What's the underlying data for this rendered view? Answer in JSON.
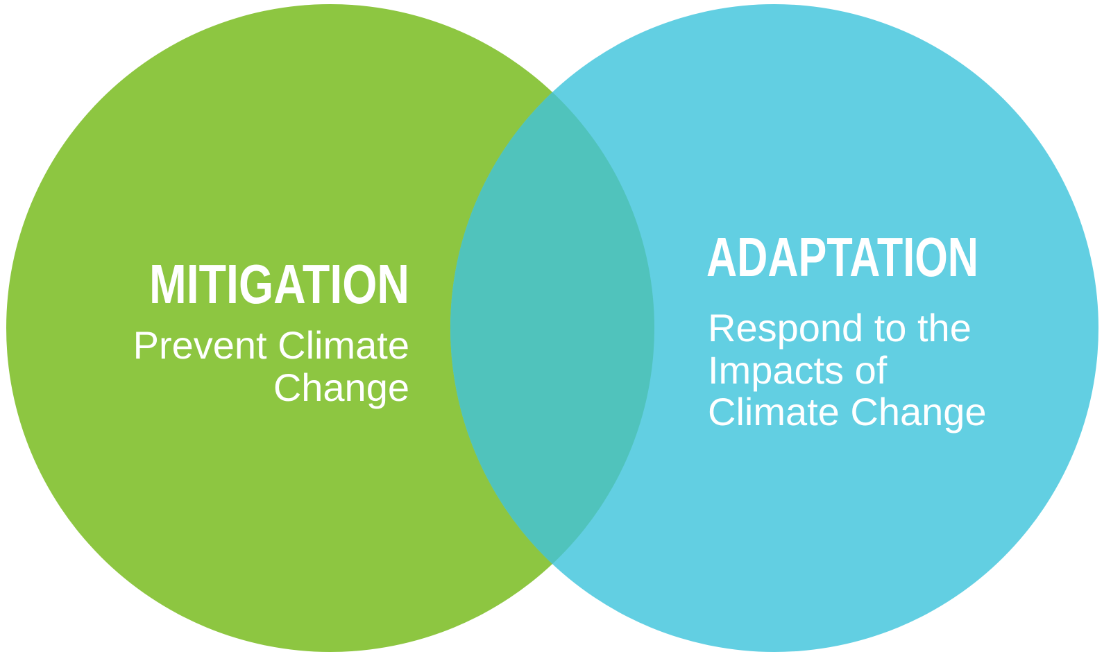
{
  "sets": [
    {
      "title": "MITIGATION",
      "lines": [
        "Prevent Climate",
        "Change"
      ]
    },
    {
      "title": "ADAPTATION",
      "lines": [
        "Respond to the",
        "Impacts of",
        "Climate Change"
      ]
    }
  ]
}
